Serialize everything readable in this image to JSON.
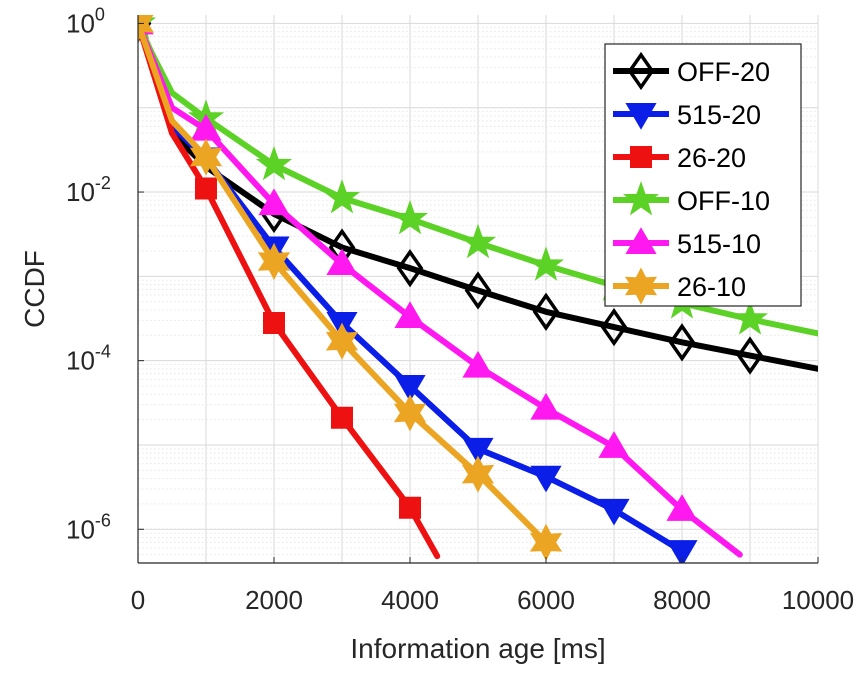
{
  "chart_data": {
    "type": "line",
    "xlabel": "Information age [ms]",
    "ylabel": "CCDF",
    "xlim": [
      0,
      10000
    ],
    "ylim_exponent": [
      -6.4,
      0.1
    ],
    "yscale": "log",
    "grid": true,
    "legend_position": "top-right",
    "x_ticks": [
      0,
      2000,
      4000,
      6000,
      8000,
      10000
    ],
    "x_tick_labels": [
      "0",
      "2000",
      "4000",
      "6000",
      "8000",
      "10000"
    ],
    "y_ticks_exponent": [
      0,
      -2,
      -4,
      -6
    ],
    "y_tick_base": "10",
    "y_tick_exponents": [
      "0",
      "-2",
      "-4",
      "-6"
    ],
    "series": [
      {
        "name": "OFF-20",
        "color": "#000000",
        "marker": "diamond",
        "line": {
          "x": [
            0,
            200,
            500,
            1000,
            2000,
            3000,
            4000,
            5000,
            6000,
            7000,
            8000,
            9000,
            10000
          ],
          "y": [
            1.0,
            0.4,
            0.05,
            0.02,
            0.0055,
            0.0022,
            0.00125,
            0.00068,
            0.00038,
            0.00025,
            0.000165,
            0.000115,
            8e-05
          ]
        },
        "markers": {
          "x": [
            0,
            2000,
            3000,
            4000,
            5000,
            6000,
            7000,
            8000,
            9000
          ],
          "y": [
            1.0,
            0.0055,
            0.0022,
            0.00125,
            0.00068,
            0.00038,
            0.00025,
            0.000165,
            0.000115
          ]
        }
      },
      {
        "name": "515-20",
        "color": "#0a1ee8",
        "marker": "triangle-down",
        "line": {
          "x": [
            0,
            200,
            500,
            1000,
            2000,
            3000,
            4000,
            5000,
            6000,
            7000,
            8000
          ],
          "y": [
            1.0,
            0.35,
            0.06,
            0.025,
            0.0022,
            0.00028,
            5e-05,
            9e-06,
            4.2e-06,
            1.7e-06,
            5.5e-07
          ]
        },
        "markers": {
          "x": [
            0,
            1000,
            2000,
            3000,
            4000,
            5000,
            6000,
            7000,
            8000
          ],
          "y": [
            1.0,
            0.025,
            0.0022,
            0.00028,
            5e-05,
            9e-06,
            4.2e-06,
            1.7e-06,
            5.5e-07
          ]
        }
      },
      {
        "name": "26-20",
        "color": "#ee1111",
        "marker": "square",
        "line": {
          "x": [
            0,
            200,
            500,
            1000,
            2000,
            3000,
            4000,
            4400
          ],
          "y": [
            1.0,
            0.3,
            0.05,
            0.011,
            0.00028,
            2.1e-05,
            1.8e-06,
            4.8e-07
          ]
        },
        "markers": {
          "x": [
            0,
            1000,
            2000,
            3000,
            4000
          ],
          "y": [
            1.0,
            0.011,
            0.00028,
            2.1e-05,
            1.8e-06
          ]
        }
      },
      {
        "name": "OFF-10",
        "color": "#5cd126",
        "marker": "star",
        "line": {
          "x": [
            0,
            200,
            500,
            1000,
            2000,
            3000,
            4000,
            5000,
            6000,
            7000,
            8000,
            9000,
            10000
          ],
          "y": [
            1.0,
            0.45,
            0.15,
            0.075,
            0.021,
            0.0085,
            0.0048,
            0.0025,
            0.00135,
            0.00078,
            0.00048,
            0.00031,
            0.00021
          ]
        },
        "markers": {
          "x": [
            0,
            1000,
            2000,
            3000,
            4000,
            5000,
            6000,
            7000,
            8000,
            9000
          ],
          "y": [
            1.0,
            0.075,
            0.021,
            0.0085,
            0.0048,
            0.0025,
            0.00135,
            0.00078,
            0.00048,
            0.00031
          ]
        }
      },
      {
        "name": "515-10",
        "color": "#ff18f0",
        "marker": "triangle-up",
        "line": {
          "x": [
            0,
            200,
            500,
            1000,
            2000,
            3000,
            4000,
            5000,
            6000,
            7000,
            8000,
            8850
          ],
          "y": [
            1.0,
            0.4,
            0.1,
            0.055,
            0.0072,
            0.0014,
            0.00033,
            8.5e-05,
            2.7e-05,
            9.5e-06,
            1.7e-06,
            5e-07
          ]
        },
        "markers": {
          "x": [
            0,
            1000,
            2000,
            3000,
            4000,
            5000,
            6000,
            7000,
            8000
          ],
          "y": [
            1.0,
            0.055,
            0.0072,
            0.0014,
            0.00033,
            8.5e-05,
            2.7e-05,
            9.5e-06,
            1.7e-06
          ]
        }
      },
      {
        "name": "26-10",
        "color": "#eca523",
        "marker": "hexagram",
        "line": {
          "x": [
            0,
            200,
            500,
            1000,
            2000,
            3000,
            4000,
            5000,
            6000
          ],
          "y": [
            1.0,
            0.35,
            0.07,
            0.026,
            0.0015,
            0.00017,
            2.4e-05,
            4.5e-06,
            7e-07
          ]
        },
        "markers": {
          "x": [
            0,
            1000,
            2000,
            3000,
            4000,
            5000,
            6000
          ],
          "y": [
            1.0,
            0.026,
            0.0015,
            0.00017,
            2.4e-05,
            4.5e-06,
            7e-07
          ]
        }
      }
    ]
  }
}
